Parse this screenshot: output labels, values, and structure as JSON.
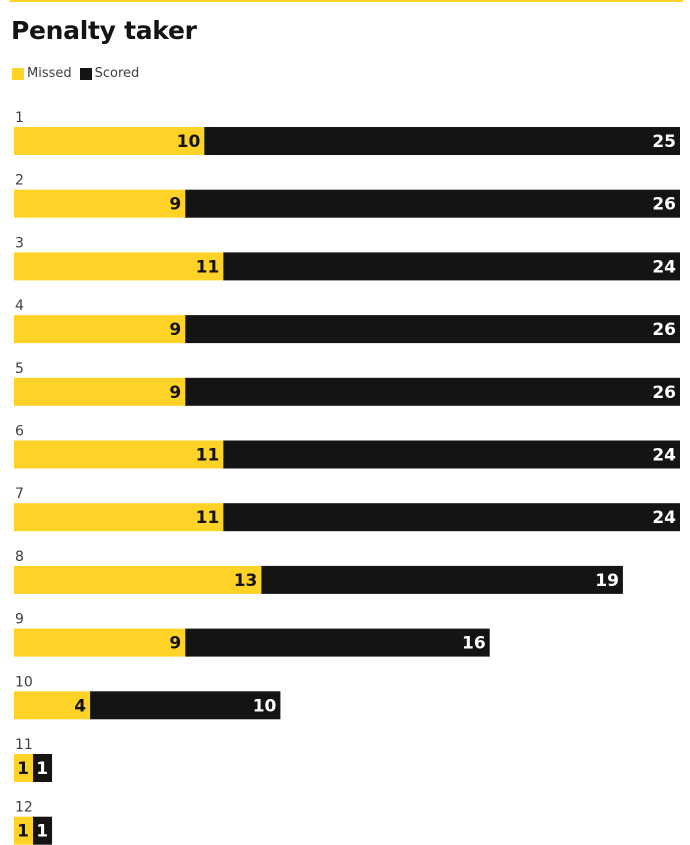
{
  "title": "Penalty taker",
  "legend": [
    {
      "label": "Missed",
      "color": "#ffd228"
    },
    {
      "label": "Scored",
      "color": "#141414"
    }
  ],
  "colors": {
    "missed": "#ffd228",
    "scored": "#141414",
    "accent_line": "#ffd228"
  },
  "chart_data": {
    "type": "bar",
    "orientation": "horizontal",
    "stacked": true,
    "title": "Penalty taker",
    "categories": [
      "1",
      "2",
      "3",
      "4",
      "5",
      "6",
      "7",
      "8",
      "9",
      "10",
      "11",
      "12"
    ],
    "series": [
      {
        "name": "Missed",
        "values": [
          10,
          9,
          11,
          9,
          9,
          11,
          11,
          13,
          9,
          4,
          1,
          1
        ]
      },
      {
        "name": "Scored",
        "values": [
          25,
          26,
          24,
          26,
          26,
          24,
          24,
          19,
          16,
          10,
          1,
          1
        ]
      }
    ],
    "xlim": [
      0,
      35
    ],
    "legend_position": "top-left",
    "grid": false
  }
}
